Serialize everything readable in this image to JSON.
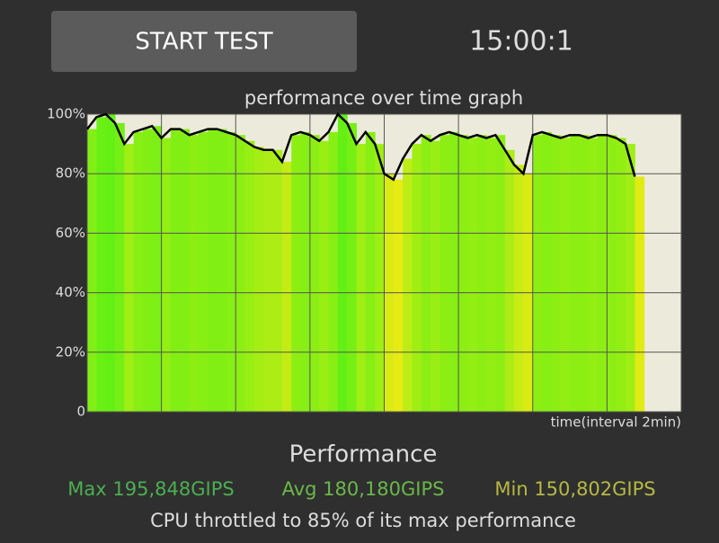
{
  "button": {
    "label": "START TEST"
  },
  "timer": "15:00:1",
  "chart_data": {
    "type": "area-bars",
    "title": "performance over time graph",
    "x_label": "time(interval 2min)",
    "x": [
      0,
      0.25,
      0.5,
      0.75,
      1,
      1.25,
      1.5,
      1.75,
      2,
      2.25,
      2.5,
      2.75,
      3,
      3.25,
      3.5,
      3.75,
      4,
      4.25,
      4.5,
      4.75,
      5,
      5.25,
      5.5,
      5.75,
      6,
      6.25,
      6.5,
      6.75,
      7,
      7.25,
      7.5,
      7.75,
      8,
      8.25,
      8.5,
      8.75,
      9,
      9.25,
      9.5,
      9.75,
      10,
      10.25,
      10.5,
      10.75,
      11,
      11.25,
      11.5,
      11.75,
      12,
      12.25,
      12.5,
      12.75,
      13,
      13.25,
      13.5,
      13.75,
      14,
      14.25,
      14.5,
      14.75
    ],
    "values": [
      95,
      99,
      100,
      97,
      90,
      94,
      95,
      96,
      92,
      95,
      95,
      93,
      94,
      95,
      95,
      94,
      93,
      91,
      89,
      88,
      88,
      84,
      93,
      94,
      93,
      91,
      94,
      100,
      97,
      90,
      94,
      90,
      80,
      78,
      85,
      90,
      93,
      91,
      93,
      94,
      93,
      92,
      93,
      92,
      93,
      88,
      83,
      80,
      93,
      94,
      93,
      92,
      93,
      93,
      92,
      93,
      93,
      92,
      90,
      79
    ],
    "color": "#000000",
    "xlim": [
      0,
      16
    ],
    "xticks": [
      0,
      2,
      4,
      6,
      8,
      10,
      12,
      14,
      16
    ],
    "ylim": [
      0,
      100
    ],
    "yticks": [
      0,
      {
        "value": 20,
        "label": "20%"
      },
      {
        "value": 40,
        "label": "40%"
      },
      {
        "value": 60,
        "label": "60%"
      },
      {
        "value": 80,
        "label": "80%"
      },
      {
        "value": 100,
        "label": "100%"
      }
    ],
    "grid": true
  },
  "stats": {
    "heading": "Performance",
    "max": "Max 195,848GIPS",
    "avg": "Avg 180,180GIPS",
    "min": "Min 150,802GIPS",
    "summary": "CPU throttled to 85% of its max performance"
  }
}
